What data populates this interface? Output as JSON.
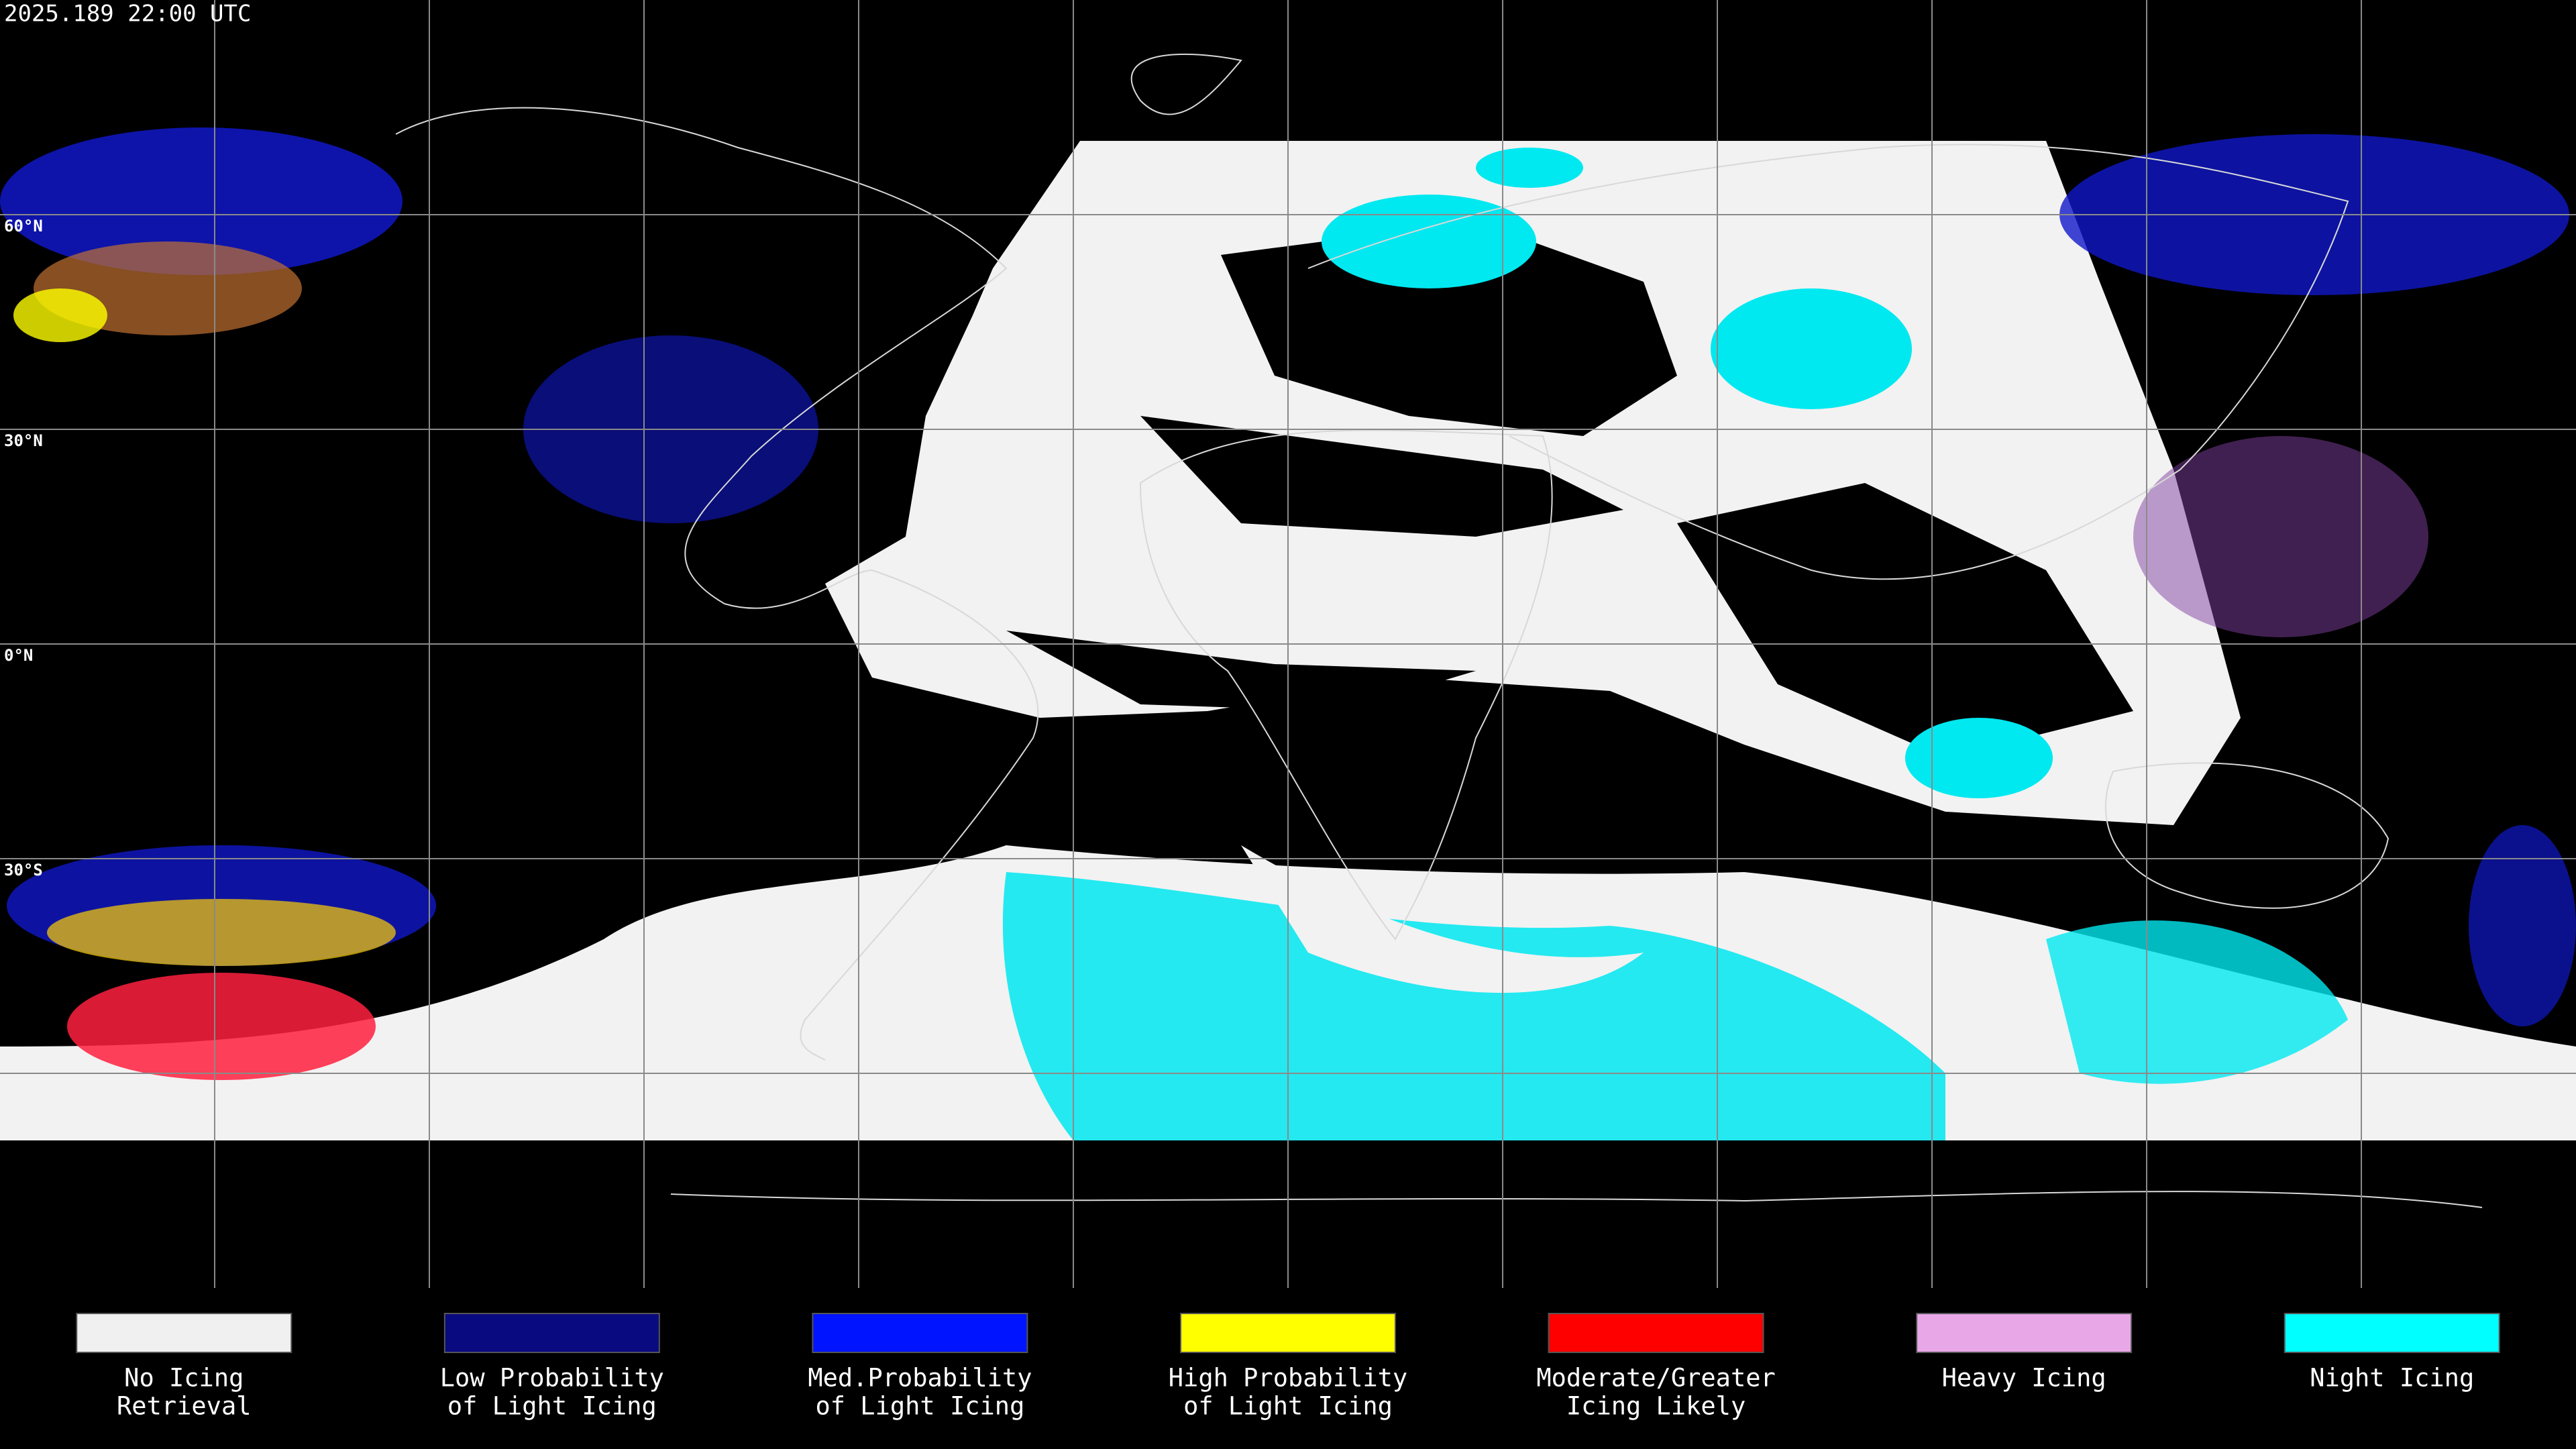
{
  "timestamp": "2025.189 22:00 UTC",
  "latitude_labels": [
    "60°N",
    "30°N",
    "0°N",
    "30°S"
  ],
  "legend": [
    {
      "lines": [
        "No Icing",
        "Retrieval"
      ],
      "color": "#f0f0f0"
    },
    {
      "lines": [
        "Low Probability",
        "of Light Icing"
      ],
      "color": "#0a0a80"
    },
    {
      "lines": [
        "Med.Probability",
        "of Light Icing"
      ],
      "color": "#0014ff"
    },
    {
      "lines": [
        "High Probability",
        "of Light Icing"
      ],
      "color": "#ffff00"
    },
    {
      "lines": [
        "Moderate/Greater",
        "Icing Likely"
      ],
      "color": "#ff0000"
    },
    {
      "lines": [
        "Heavy Icing"
      ],
      "color": "#e8a8e8"
    },
    {
      "lines": [
        "Night Icing"
      ],
      "color": "#00ffff"
    }
  ]
}
